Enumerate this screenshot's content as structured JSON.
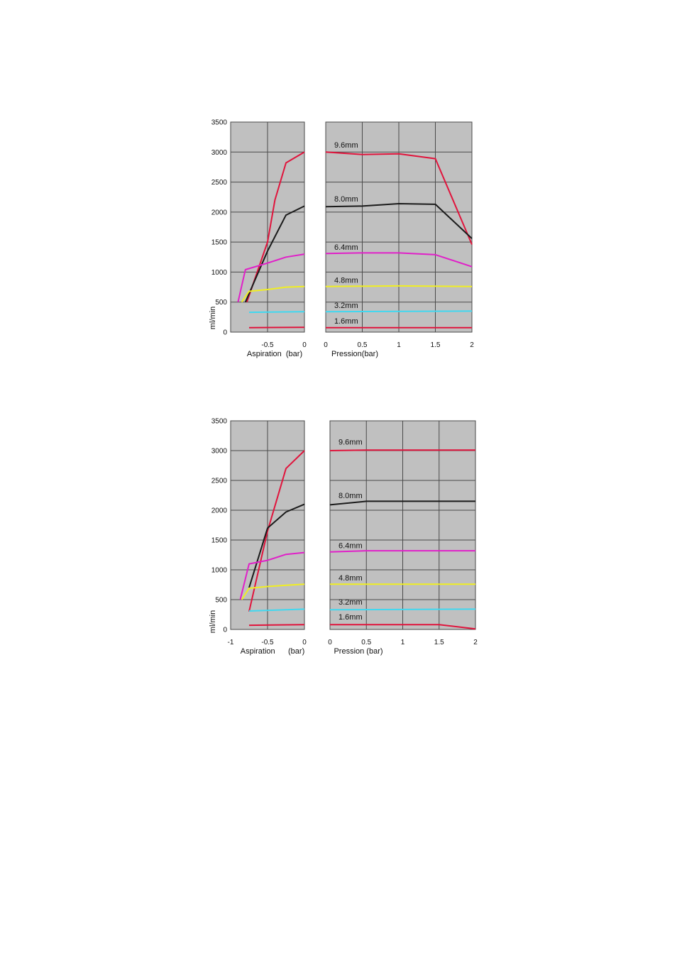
{
  "colors": {
    "plot_bg": "#c0c0c0",
    "grid": "#4a4a4a",
    "red": "#e0143c",
    "black": "#1a1a1a",
    "magenta": "#e020c8",
    "yellow": "#f0ee22",
    "cyan": "#40d8f0"
  },
  "chart_data": [
    {
      "type": "line",
      "ylabel": "ml/min",
      "ylim": [
        0,
        3500
      ],
      "yticks": [
        "0",
        "500",
        "1000",
        "1500",
        "2000",
        "2500",
        "3000",
        "3500"
      ],
      "grid": true,
      "left_panel": {
        "xlabel": "Aspiration  (bar)",
        "xlim": [
          -1,
          0
        ],
        "xticks": [
          {
            "value": -0.5,
            "label": "-0.5"
          },
          {
            "value": 0,
            "label": "0"
          }
        ],
        "series": [
          {
            "color": "red",
            "points": [
              [
                -0.78,
                500
              ],
              [
                -0.5,
                1500
              ],
              [
                -0.4,
                2200
              ],
              [
                -0.25,
                2820
              ],
              [
                0,
                3000
              ]
            ]
          },
          {
            "color": "black",
            "points": [
              [
                -0.8,
                500
              ],
              [
                -0.5,
                1350
              ],
              [
                -0.25,
                1950
              ],
              [
                0,
                2100
              ]
            ]
          },
          {
            "color": "magenta",
            "points": [
              [
                -0.9,
                500
              ],
              [
                -0.8,
                1040
              ],
              [
                -0.5,
                1150
              ],
              [
                -0.25,
                1250
              ],
              [
                0,
                1300
              ]
            ]
          },
          {
            "color": "yellow",
            "points": [
              [
                -0.85,
                500
              ],
              [
                -0.75,
                680
              ],
              [
                -0.5,
                710
              ],
              [
                -0.25,
                750
              ],
              [
                0,
                760
              ]
            ]
          },
          {
            "color": "cyan",
            "points": [
              [
                -0.75,
                330
              ],
              [
                0,
                340
              ]
            ]
          },
          {
            "color": "red",
            "points": [
              [
                -0.75,
                75
              ],
              [
                0,
                80
              ]
            ]
          }
        ]
      },
      "right_panel": {
        "xlabel": "Pression(bar)",
        "xlim": [
          0,
          2
        ],
        "xticks": [
          {
            "value": 0,
            "label": "0"
          },
          {
            "value": 0.5,
            "label": "0.5"
          },
          {
            "value": 1,
            "label": "1"
          },
          {
            "value": 1.5,
            "label": "1.5"
          },
          {
            "value": 2,
            "label": "2"
          }
        ],
        "series": [
          {
            "name": "9.6mm",
            "color": "red",
            "label_y": 3050,
            "points": [
              [
                0,
                3000
              ],
              [
                0.5,
                2960
              ],
              [
                1,
                2970
              ],
              [
                1.5,
                2890
              ],
              [
                2,
                1460
              ]
            ]
          },
          {
            "name": "8.0mm",
            "color": "black",
            "label_y": 2150,
            "points": [
              [
                0,
                2090
              ],
              [
                0.5,
                2100
              ],
              [
                1,
                2140
              ],
              [
                1.5,
                2130
              ],
              [
                2,
                1560
              ]
            ]
          },
          {
            "name": "6.4mm",
            "color": "magenta",
            "label_y": 1350,
            "points": [
              [
                0,
                1310
              ],
              [
                0.5,
                1320
              ],
              [
                1,
                1320
              ],
              [
                1.5,
                1290
              ],
              [
                2,
                1090
              ]
            ]
          },
          {
            "name": "4.8mm",
            "color": "yellow",
            "label_y": 800,
            "points": [
              [
                0,
                760
              ],
              [
                1,
                770
              ],
              [
                2,
                760
              ]
            ]
          },
          {
            "name": "3.2mm",
            "color": "cyan",
            "label_y": 380,
            "points": [
              [
                0,
                340
              ],
              [
                2,
                350
              ]
            ]
          },
          {
            "name": "1.6mm",
            "color": "red",
            "label_y": 120,
            "points": [
              [
                0,
                75
              ],
              [
                2,
                75
              ]
            ]
          }
        ]
      }
    },
    {
      "type": "line",
      "ylabel": "ml/min",
      "ylim": [
        0,
        3500
      ],
      "yticks": [
        "0",
        "500",
        "1000",
        "1500",
        "2000",
        "2500",
        "3000",
        "3500"
      ],
      "grid": true,
      "left_panel": {
        "xlabel": "Aspiration      (bar)",
        "xlim": [
          -1,
          0
        ],
        "xticks": [
          {
            "value": -1,
            "label": "-1"
          },
          {
            "value": -0.5,
            "label": "-0.5"
          },
          {
            "value": 0,
            "label": "0"
          }
        ],
        "series": [
          {
            "color": "red",
            "points": [
              [
                -0.75,
                300
              ],
              [
                -0.5,
                1650
              ],
              [
                -0.25,
                2700
              ],
              [
                0,
                3000
              ]
            ]
          },
          {
            "color": "black",
            "points": [
              [
                -0.75,
                700
              ],
              [
                -0.5,
                1700
              ],
              [
                -0.25,
                1970
              ],
              [
                0,
                2100
              ]
            ]
          },
          {
            "color": "magenta",
            "points": [
              [
                -0.87,
                500
              ],
              [
                -0.75,
                1100
              ],
              [
                -0.5,
                1160
              ],
              [
                -0.25,
                1260
              ],
              [
                0,
                1290
              ]
            ]
          },
          {
            "color": "yellow",
            "points": [
              [
                -0.85,
                500
              ],
              [
                -0.75,
                690
              ],
              [
                -0.5,
                720
              ],
              [
                -0.25,
                740
              ],
              [
                0,
                760
              ]
            ]
          },
          {
            "color": "cyan",
            "points": [
              [
                -0.75,
                310
              ],
              [
                -0.5,
                320
              ],
              [
                0,
                340
              ]
            ]
          },
          {
            "color": "red",
            "points": [
              [
                -0.75,
                70
              ],
              [
                0,
                80
              ]
            ]
          }
        ]
      },
      "right_panel": {
        "xlabel": "Pression (bar)",
        "xlim": [
          0,
          2
        ],
        "xticks": [
          {
            "value": 0,
            "label": "0"
          },
          {
            "value": 0.5,
            "label": "0.5"
          },
          {
            "value": 1,
            "label": "1"
          },
          {
            "value": 1.5,
            "label": "1.5"
          },
          {
            "value": 2,
            "label": "2"
          }
        ],
        "series": [
          {
            "name": "9.6mm",
            "color": "red",
            "label_y": 3080,
            "points": [
              [
                0,
                3000
              ],
              [
                0.5,
                3010
              ],
              [
                1,
                3010
              ],
              [
                2,
                3010
              ]
            ]
          },
          {
            "name": "8.0mm",
            "color": "black",
            "label_y": 2180,
            "points": [
              [
                0,
                2090
              ],
              [
                0.5,
                2150
              ],
              [
                1,
                2150
              ],
              [
                2,
                2150
              ]
            ]
          },
          {
            "name": "6.4mm",
            "color": "magenta",
            "label_y": 1340,
            "points": [
              [
                0,
                1300
              ],
              [
                0.5,
                1320
              ],
              [
                2,
                1320
              ]
            ]
          },
          {
            "name": "4.8mm",
            "color": "yellow",
            "label_y": 800,
            "points": [
              [
                0,
                760
              ],
              [
                2,
                760
              ]
            ]
          },
          {
            "name": "3.2mm",
            "color": "cyan",
            "label_y": 390,
            "points": [
              [
                0,
                330
              ],
              [
                2,
                340
              ]
            ]
          },
          {
            "name": "1.6mm",
            "color": "red",
            "label_y": 140,
            "points": [
              [
                0,
                80
              ],
              [
                1.5,
                80
              ],
              [
                2,
                10
              ]
            ]
          }
        ]
      }
    }
  ]
}
